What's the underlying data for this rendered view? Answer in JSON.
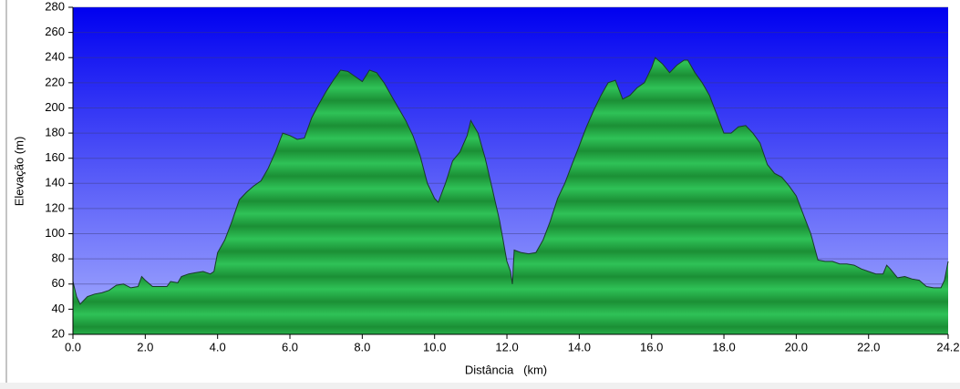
{
  "chart_data": {
    "type": "area",
    "xlabel": "Distância   (km)",
    "ylabel": "Elevação (m)",
    "color": "#22a844",
    "line_color": "#1a3a2a",
    "background_top": "#0000f0",
    "background_bottom": "#a8b0ff",
    "grid": true,
    "xlim": [
      0,
      24.2
    ],
    "ylim": [
      20,
      280
    ],
    "xticks": [
      {
        "value": 0,
        "label": "0.0"
      },
      {
        "value": 2,
        "label": "2.0"
      },
      {
        "value": 4,
        "label": "4.0"
      },
      {
        "value": 6,
        "label": "6.0"
      },
      {
        "value": 8,
        "label": "8.0"
      },
      {
        "value": 10,
        "label": "10.0"
      },
      {
        "value": 12,
        "label": "12.0"
      },
      {
        "value": 14,
        "label": "14.0"
      },
      {
        "value": 16,
        "label": "16.0"
      },
      {
        "value": 18,
        "label": "18.0"
      },
      {
        "value": 20,
        "label": "20.0"
      },
      {
        "value": 22,
        "label": "22.0"
      },
      24.2
    ],
    "yticks": [
      20,
      40,
      60,
      80,
      100,
      120,
      140,
      160,
      180,
      200,
      220,
      240,
      260,
      280
    ],
    "x": [
      0,
      0.1,
      0.2,
      0.4,
      0.6,
      0.8,
      1.0,
      1.2,
      1.4,
      1.6,
      1.8,
      1.9,
      2.0,
      2.2,
      2.4,
      2.6,
      2.7,
      2.9,
      3.0,
      3.2,
      3.4,
      3.6,
      3.8,
      3.9,
      4.0,
      4.2,
      4.4,
      4.6,
      4.8,
      5.0,
      5.2,
      5.4,
      5.6,
      5.8,
      6.0,
      6.2,
      6.4,
      6.6,
      6.8,
      7.0,
      7.2,
      7.4,
      7.6,
      7.8,
      8.0,
      8.2,
      8.4,
      8.6,
      8.8,
      9.0,
      9.2,
      9.4,
      9.6,
      9.8,
      10.0,
      10.1,
      10.3,
      10.5,
      10.7,
      10.9,
      11.0,
      11.2,
      11.4,
      11.6,
      11.8,
      12.0,
      12.1,
      12.15,
      12.2,
      12.4,
      12.6,
      12.8,
      13.0,
      13.2,
      13.4,
      13.6,
      13.8,
      14.0,
      14.2,
      14.4,
      14.6,
      14.8,
      15.0,
      15.2,
      15.4,
      15.6,
      15.8,
      16.0,
      16.1,
      16.3,
      16.5,
      16.7,
      16.9,
      17.0,
      17.2,
      17.4,
      17.6,
      17.8,
      18.0,
      18.2,
      18.4,
      18.6,
      18.8,
      19.0,
      19.2,
      19.4,
      19.6,
      19.8,
      20.0,
      20.2,
      20.4,
      20.6,
      20.8,
      21.0,
      21.2,
      21.4,
      21.6,
      21.8,
      22.0,
      22.2,
      22.4,
      22.5,
      22.6,
      22.8,
      23.0,
      23.2,
      23.4,
      23.6,
      23.8,
      24.0,
      24.1,
      24.2
    ],
    "values": [
      62,
      50,
      44,
      50,
      52,
      53,
      55,
      59,
      60,
      57,
      58,
      66,
      63,
      58,
      58,
      58,
      62,
      61,
      66,
      68,
      69,
      70,
      68,
      70,
      85,
      95,
      110,
      127,
      133,
      138,
      142,
      152,
      165,
      180,
      178,
      175,
      176,
      192,
      203,
      213,
      222,
      230,
      229,
      225,
      221,
      230,
      228,
      220,
      210,
      200,
      190,
      178,
      162,
      140,
      128,
      125,
      140,
      158,
      165,
      178,
      190,
      180,
      160,
      135,
      110,
      78,
      70,
      60,
      87,
      85,
      84,
      85,
      95,
      110,
      128,
      140,
      155,
      170,
      185,
      198,
      210,
      220,
      222,
      207,
      210,
      216,
      220,
      232,
      240,
      235,
      228,
      234,
      238,
      238,
      228,
      220,
      210,
      195,
      180,
      180,
      185,
      186,
      180,
      172,
      155,
      148,
      145,
      138,
      130,
      115,
      100,
      79,
      78,
      78,
      76,
      76,
      75,
      72,
      70,
      68,
      68,
      75,
      72,
      65,
      66,
      64,
      63,
      58,
      57,
      57,
      63,
      78
    ]
  }
}
